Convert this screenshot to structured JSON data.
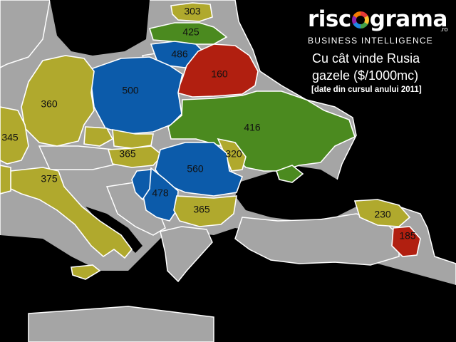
{
  "brand": {
    "logo_left": "risc",
    "logo_right": "grama",
    "tld": ".ro",
    "tagline": "BUSINESS INTELLIGENCE"
  },
  "title_line1": "Cu cât vinde Rusia",
  "title_line2": "gazele ($/1000mc)",
  "subtitle": "[date din cursul anului 2011]",
  "colors": {
    "sea": "#000000",
    "land": "#a5a5a5",
    "olive": "#b0a92d",
    "green": "#4b8a1f",
    "blue": "#0c5baa",
    "red": "#b11f10"
  },
  "countries": [
    {
      "key": "estonia",
      "value": "303",
      "color": "olive"
    },
    {
      "key": "latvia",
      "value": "425",
      "color": "green"
    },
    {
      "key": "lithuania",
      "value": "486",
      "color": "blue"
    },
    {
      "key": "belarus",
      "value": "160",
      "color": "red"
    },
    {
      "key": "poland",
      "value": "500",
      "color": "blue"
    },
    {
      "key": "germany",
      "value": "360",
      "color": "olive"
    },
    {
      "key": "france",
      "value": "345",
      "color": "olive"
    },
    {
      "key": "ukraine",
      "value": "416",
      "color": "green"
    },
    {
      "key": "slovakia",
      "value": "",
      "color": "olive"
    },
    {
      "key": "czechia",
      "value": "",
      "color": "olive"
    },
    {
      "key": "hungary",
      "value": "365",
      "color": "olive"
    },
    {
      "key": "moldova",
      "value": "320",
      "color": "olive"
    },
    {
      "key": "romania",
      "value": "560",
      "color": "blue"
    },
    {
      "key": "italy",
      "value": "375",
      "color": "olive"
    },
    {
      "key": "serbia",
      "value": "478",
      "color": "blue"
    },
    {
      "key": "bosnia",
      "value": "",
      "color": "blue"
    },
    {
      "key": "bulgaria",
      "value": "365",
      "color": "olive"
    },
    {
      "key": "georgia",
      "value": "230",
      "color": "olive"
    },
    {
      "key": "armenia",
      "value": "185",
      "color": "red"
    }
  ]
}
